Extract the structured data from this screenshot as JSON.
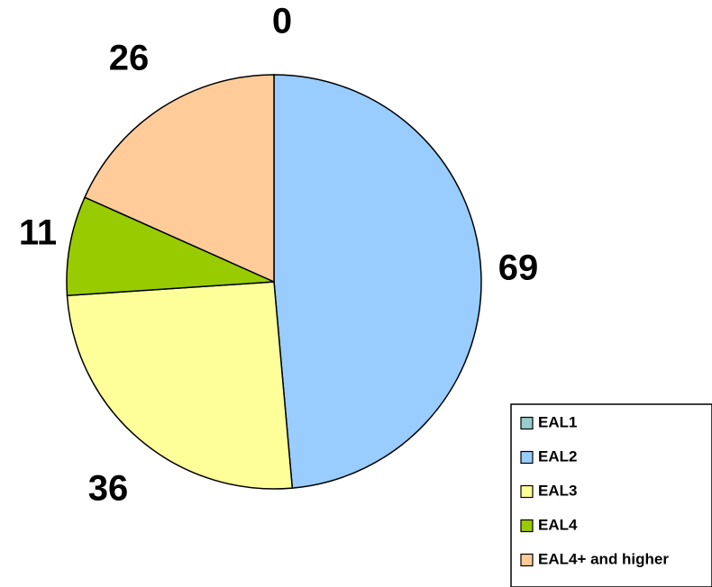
{
  "chart_data": {
    "type": "pie",
    "categories": [
      "EAL1",
      "EAL2",
      "EAL3",
      "EAL4",
      "EAL4+ and higher"
    ],
    "values": [
      0,
      69,
      36,
      11,
      26
    ],
    "data_labels": [
      "0",
      "69",
      "36",
      "11",
      "26"
    ],
    "colors": [
      "#99CCCC",
      "#99CCFF",
      "#FFFF99",
      "#99CC00",
      "#FFCC99"
    ],
    "legend_position": "bottom-right",
    "start_angle": "12 o'clock",
    "direction": "clockwise"
  }
}
